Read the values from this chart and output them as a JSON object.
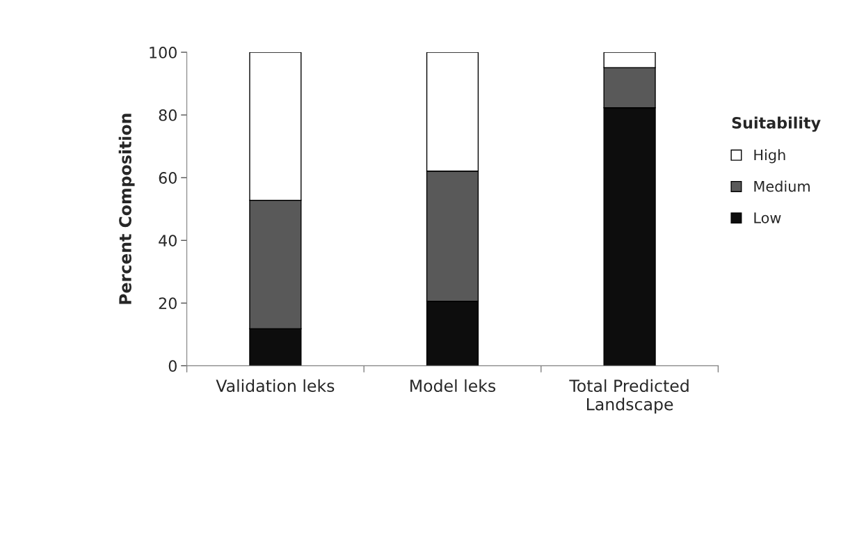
{
  "chart_data": {
    "type": "bar",
    "stacked": true,
    "ylabel": "Percent Composition",
    "legend_title": "Suitability",
    "categories": [
      "Validation leks",
      "Model leks",
      "Total Predicted\nLandscape"
    ],
    "series": [
      {
        "name": "Low",
        "color": "#0d0d0d",
        "values": [
          11.8,
          20.6,
          82.3
        ]
      },
      {
        "name": "Medium",
        "color": "#595959",
        "values": [
          41.0,
          41.5,
          12.8
        ]
      },
      {
        "name": "High",
        "color": "#ffffff",
        "values": [
          47.2,
          37.9,
          4.9
        ]
      }
    ],
    "ylim": [
      0,
      100
    ],
    "yticks": [
      0,
      20,
      40,
      60,
      80,
      100
    ],
    "grid": false,
    "legend": "right"
  }
}
